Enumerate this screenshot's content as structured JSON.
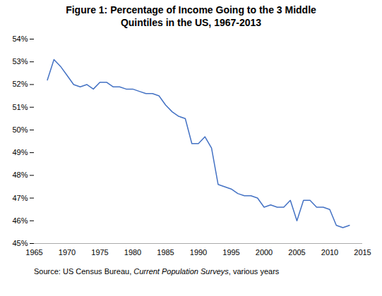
{
  "chart_data": {
    "type": "line",
    "title": "Figure 1: Percentage of Income Going to the 3 Middle\nQuintiles in the US, 1967-2013",
    "source": [
      "Source: US Census Bureau, ",
      "Current Population Surveys",
      ", various years"
    ],
    "color": "#4472C4",
    "grid": false,
    "xlim": [
      1965,
      2015
    ],
    "xticks": [
      1965,
      1970,
      1975,
      1980,
      1985,
      1990,
      1995,
      2000,
      2005,
      2010,
      2015
    ],
    "ylim": [
      0.45,
      0.54
    ],
    "yticks": [
      {
        "value": 0.45,
        "label": "45%"
      },
      {
        "value": 0.46,
        "label": "46%"
      },
      {
        "value": 0.47,
        "label": "47%"
      },
      {
        "value": 0.48,
        "label": "48%"
      },
      {
        "value": 0.49,
        "label": "49%"
      },
      {
        "value": 0.5,
        "label": "50%"
      },
      {
        "value": 0.51,
        "label": "51%"
      },
      {
        "value": 0.52,
        "label": "52%"
      },
      {
        "value": 0.53,
        "label": "53%"
      },
      {
        "value": 0.54,
        "label": "54%"
      }
    ],
    "x": [
      1967,
      1968,
      1969,
      1970,
      1971,
      1972,
      1973,
      1974,
      1975,
      1976,
      1977,
      1978,
      1979,
      1980,
      1981,
      1982,
      1983,
      1984,
      1985,
      1986,
      1987,
      1988,
      1989,
      1990,
      1991,
      1992,
      1993,
      1994,
      1995,
      1996,
      1997,
      1998,
      1999,
      2000,
      2001,
      2002,
      2003,
      2004,
      2005,
      2006,
      2007,
      2008,
      2009,
      2010,
      2011,
      2012,
      2013
    ],
    "values": [
      0.522,
      0.531,
      0.528,
      0.524,
      0.52,
      0.519,
      0.52,
      0.518,
      0.521,
      0.521,
      0.519,
      0.519,
      0.518,
      0.518,
      0.517,
      0.516,
      0.516,
      0.515,
      0.511,
      0.508,
      0.506,
      0.505,
      0.494,
      0.494,
      0.497,
      0.492,
      0.476,
      0.475,
      0.474,
      0.472,
      0.471,
      0.471,
      0.47,
      0.466,
      0.467,
      0.466,
      0.466,
      0.469,
      0.46,
      0.469,
      0.469,
      0.466,
      0.466,
      0.465,
      0.458,
      0.457,
      0.458
    ]
  }
}
